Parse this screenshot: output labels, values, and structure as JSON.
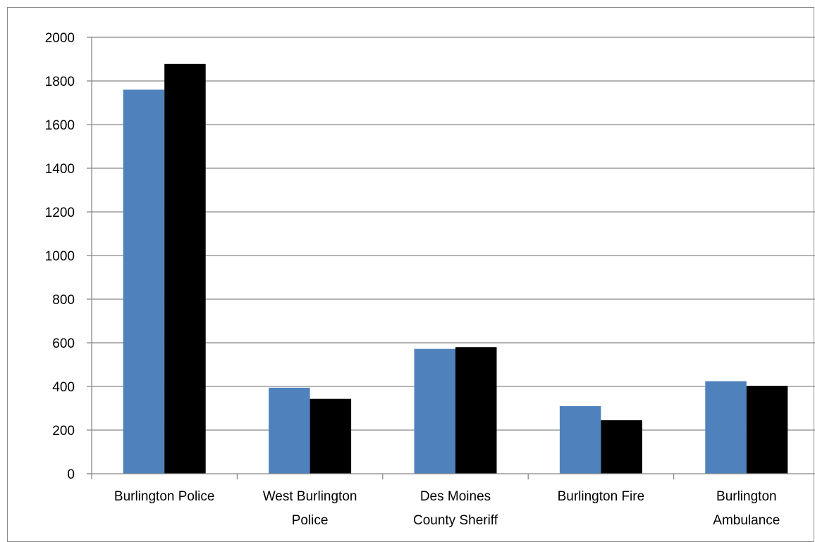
{
  "chart_data": {
    "type": "bar",
    "title": "",
    "xlabel": "",
    "ylabel": "",
    "categories": [
      [
        "Burlington Police"
      ],
      [
        "West Burlington",
        "Police"
      ],
      [
        "Des Moines",
        "County Sheriff"
      ],
      [
        "Burlington Fire"
      ],
      [
        "Burlington",
        "Ambulance"
      ]
    ],
    "series": [
      {
        "color": "#4f81bd",
        "values": [
          1760,
          394,
          572,
          310,
          424
        ]
      },
      {
        "color": "#000000",
        "values": [
          1878,
          343,
          580,
          245,
          403
        ]
      }
    ],
    "ylim": [
      0,
      2000
    ],
    "yticks": [
      0,
      200,
      400,
      600,
      800,
      1000,
      1200,
      1400,
      1600,
      1800,
      2000
    ],
    "grid": true,
    "legend": "none",
    "gridline_color": "#888888",
    "axis_color": "#888888"
  }
}
